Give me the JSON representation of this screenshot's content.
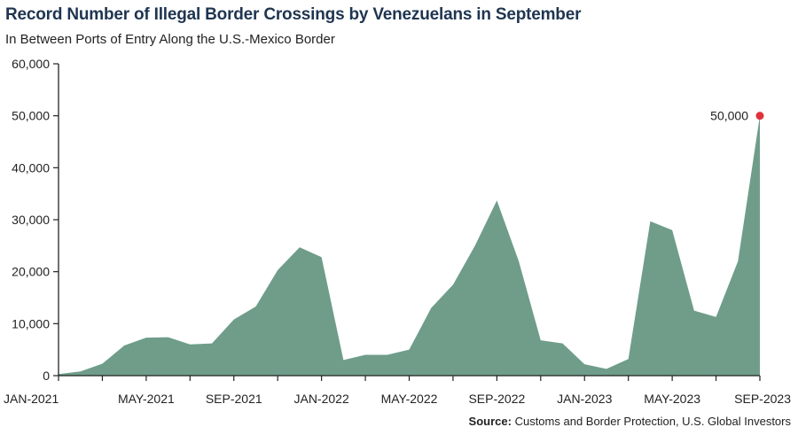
{
  "title": "Record Number of Illegal Border Crossings by Venezuelans in September",
  "subtitle": "In Between Ports of Entry Along the U.S.-Mexico Border",
  "source": {
    "label": "Source:",
    "text": "Customs and Border Protection, U.S. Global Investors"
  },
  "colors": {
    "area": "#6f9d8a",
    "highlight": "#e0313a",
    "axis": "#222222"
  },
  "chart_data": {
    "type": "area",
    "x": [
      "JAN-2021",
      "FEB-2021",
      "MAR-2021",
      "APR-2021",
      "MAY-2021",
      "JUN-2021",
      "JUL-2021",
      "AUG-2021",
      "SEP-2021",
      "OCT-2021",
      "NOV-2021",
      "DEC-2021",
      "JAN-2022",
      "FEB-2022",
      "MAR-2022",
      "APR-2022",
      "MAY-2022",
      "JUN-2022",
      "JUL-2022",
      "AUG-2022",
      "SEP-2022",
      "OCT-2022",
      "NOV-2022",
      "DEC-2022",
      "JAN-2023",
      "FEB-2023",
      "MAR-2023",
      "APR-2023",
      "MAY-2023",
      "JUN-2023",
      "JUL-2023",
      "AUG-2023",
      "SEP-2023"
    ],
    "values": [
      300,
      800,
      2300,
      5800,
      7300,
      7400,
      6000,
      6200,
      10800,
      13300,
      20300,
      24700,
      22800,
      3000,
      4000,
      4000,
      5000,
      13000,
      17500,
      25000,
      33700,
      22000,
      6800,
      6200,
      2200,
      1300,
      3200,
      29700,
      28000,
      12500,
      11300,
      22000,
      50000
    ],
    "x_tick_labels": [
      "JAN-2021",
      "MAY-2021",
      "SEP-2021",
      "JAN-2022",
      "MAY-2022",
      "SEP-2022",
      "JAN-2023",
      "MAY-2023",
      "SEP-2023"
    ],
    "y_ticks": [
      0,
      10000,
      20000,
      30000,
      40000,
      50000,
      60000
    ],
    "y_tick_labels": [
      "0",
      "10,000",
      "20,000",
      "30,000",
      "40,000",
      "50,000",
      "60,000"
    ],
    "ylim": [
      0,
      60000
    ],
    "grid": false,
    "annotation": {
      "index": 32,
      "text": "50,000"
    }
  }
}
